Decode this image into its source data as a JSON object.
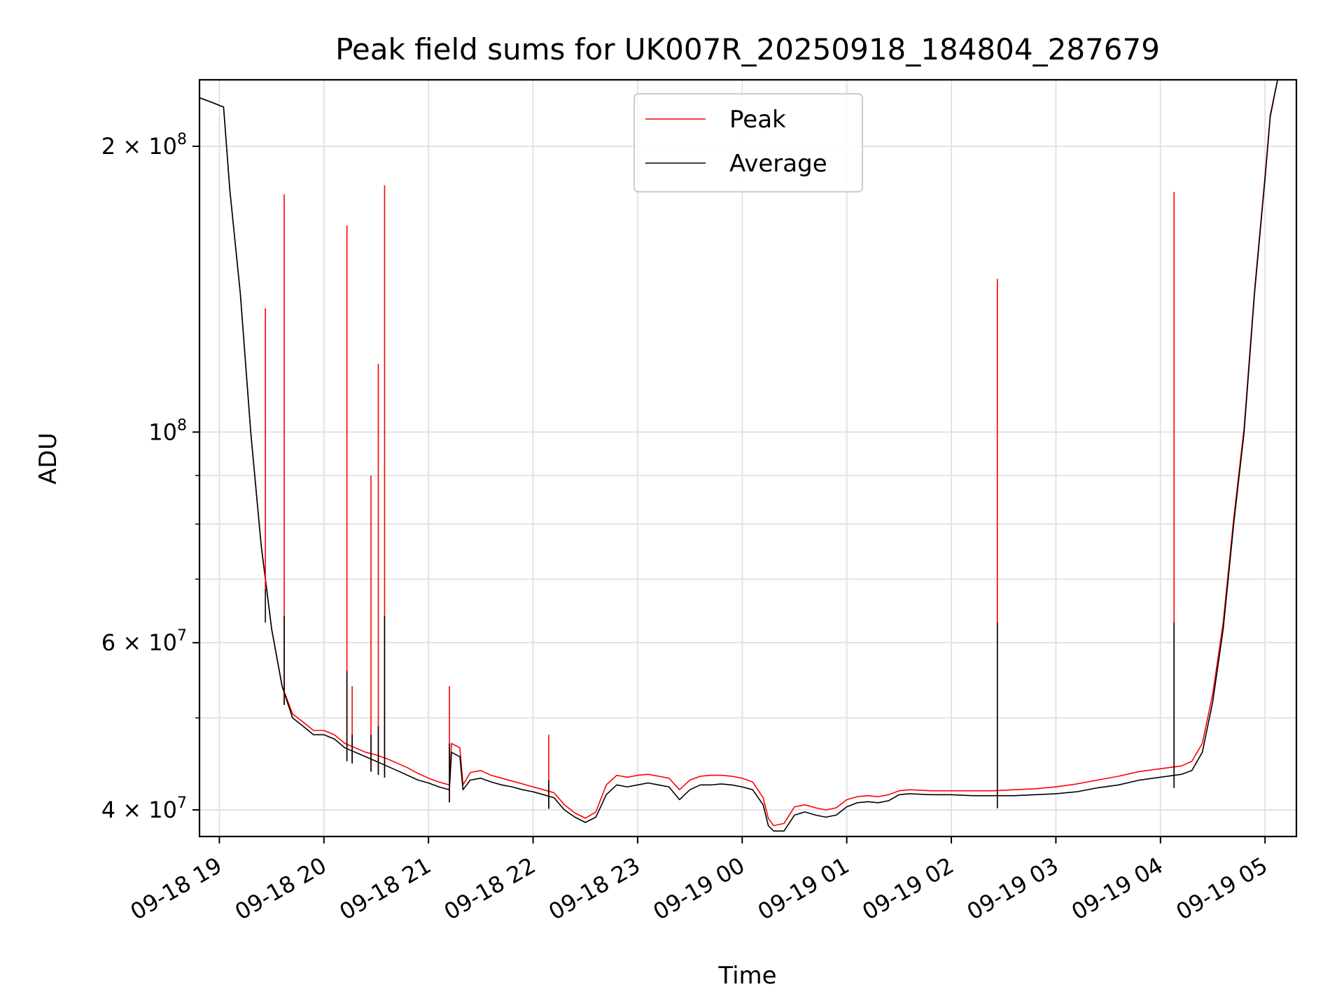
{
  "chart_data": {
    "type": "line",
    "title": "Peak field sums for UK007R_20250918_184804_287679",
    "xlabel": "Time",
    "ylabel": "ADU",
    "yscale": "log",
    "ylim": [
      37500000,
      235000000
    ],
    "xlim_hours": [
      -0.19,
      10.3
    ],
    "x_origin": "09-18 19:00",
    "grid": true,
    "legend_position": "upper center",
    "x_ticks": [
      {
        "h": 0,
        "label": "09-18 19"
      },
      {
        "h": 1,
        "label": "09-18 20"
      },
      {
        "h": 2,
        "label": "09-18 21"
      },
      {
        "h": 3,
        "label": "09-18 22"
      },
      {
        "h": 4,
        "label": "09-18 23"
      },
      {
        "h": 5,
        "label": "09-19 00"
      },
      {
        "h": 6,
        "label": "09-19 01"
      },
      {
        "h": 7,
        "label": "09-19 02"
      },
      {
        "h": 8,
        "label": "09-19 03"
      },
      {
        "h": 9,
        "label": "09-19 04"
      },
      {
        "h": 10,
        "label": "09-19 05"
      }
    ],
    "y_ticks": [
      {
        "value": 40000000,
        "base": "4 × 10",
        "exp": "7"
      },
      {
        "value": 60000000,
        "base": "6 × 10",
        "exp": "7"
      },
      {
        "value": 100000000,
        "base": "10",
        "exp": "8"
      },
      {
        "value": 200000000,
        "base": "2 × 10",
        "exp": "8"
      }
    ],
    "y_minor_ticks": [
      50000000,
      70000000,
      80000000,
      90000000
    ],
    "series": [
      {
        "name": "Average",
        "color": "#000000",
        "points": [
          [
            -0.19,
            225000000
          ],
          [
            -0.05,
            222000000
          ],
          [
            0.04,
            220000000
          ],
          [
            0.1,
            180000000
          ],
          [
            0.2,
            140000000
          ],
          [
            0.3,
            100000000
          ],
          [
            0.4,
            76000000
          ],
          [
            0.5,
            62000000
          ],
          [
            0.6,
            54000000
          ],
          [
            0.7,
            50000000
          ],
          [
            0.8,
            49000000
          ],
          [
            0.9,
            48000000
          ],
          [
            1.0,
            48000000
          ],
          [
            1.1,
            47500000
          ],
          [
            1.2,
            46500000
          ],
          [
            1.3,
            46000000
          ],
          [
            1.4,
            45500000
          ],
          [
            1.5,
            45000000
          ],
          [
            1.6,
            44500000
          ],
          [
            1.7,
            44000000
          ],
          [
            1.8,
            43500000
          ],
          [
            1.9,
            43000000
          ],
          [
            2.0,
            42700000
          ],
          [
            2.1,
            42300000
          ],
          [
            2.2,
            42000000
          ],
          [
            2.22,
            46000000
          ],
          [
            2.3,
            45500000
          ],
          [
            2.33,
            42000000
          ],
          [
            2.4,
            43000000
          ],
          [
            2.5,
            43200000
          ],
          [
            2.6,
            42800000
          ],
          [
            2.7,
            42500000
          ],
          [
            2.8,
            42300000
          ],
          [
            2.9,
            42000000
          ],
          [
            3.0,
            41800000
          ],
          [
            3.1,
            41500000
          ],
          [
            3.2,
            41200000
          ],
          [
            3.3,
            40000000
          ],
          [
            3.4,
            39300000
          ],
          [
            3.5,
            38800000
          ],
          [
            3.6,
            39300000
          ],
          [
            3.7,
            41500000
          ],
          [
            3.8,
            42500000
          ],
          [
            3.9,
            42300000
          ],
          [
            4.0,
            42500000
          ],
          [
            4.1,
            42700000
          ],
          [
            4.2,
            42500000
          ],
          [
            4.3,
            42300000
          ],
          [
            4.4,
            41000000
          ],
          [
            4.5,
            42000000
          ],
          [
            4.6,
            42500000
          ],
          [
            4.7,
            42500000
          ],
          [
            4.8,
            42600000
          ],
          [
            4.9,
            42500000
          ],
          [
            5.0,
            42300000
          ],
          [
            5.1,
            42000000
          ],
          [
            5.2,
            40500000
          ],
          [
            5.25,
            38500000
          ],
          [
            5.3,
            38000000
          ],
          [
            5.4,
            38000000
          ],
          [
            5.5,
            39500000
          ],
          [
            5.6,
            39800000
          ],
          [
            5.7,
            39500000
          ],
          [
            5.8,
            39300000
          ],
          [
            5.9,
            39500000
          ],
          [
            6.0,
            40300000
          ],
          [
            6.1,
            40700000
          ],
          [
            6.2,
            40800000
          ],
          [
            6.3,
            40700000
          ],
          [
            6.4,
            40900000
          ],
          [
            6.5,
            41500000
          ],
          [
            6.6,
            41600000
          ],
          [
            6.8,
            41500000
          ],
          [
            7.0,
            41500000
          ],
          [
            7.2,
            41400000
          ],
          [
            7.4,
            41400000
          ],
          [
            7.6,
            41400000
          ],
          [
            7.8,
            41500000
          ],
          [
            8.0,
            41600000
          ],
          [
            8.2,
            41800000
          ],
          [
            8.4,
            42200000
          ],
          [
            8.6,
            42500000
          ],
          [
            8.8,
            43000000
          ],
          [
            9.0,
            43300000
          ],
          [
            9.2,
            43600000
          ],
          [
            9.3,
            44000000
          ],
          [
            9.4,
            46000000
          ],
          [
            9.5,
            52000000
          ],
          [
            9.6,
            62000000
          ],
          [
            9.7,
            80000000
          ],
          [
            9.8,
            100000000
          ],
          [
            9.9,
            140000000
          ],
          [
            10.0,
            185000000
          ],
          [
            10.05,
            215000000
          ],
          [
            10.12,
            235000000
          ],
          [
            10.3,
            235000000
          ]
        ]
      },
      {
        "name": "Peak",
        "color": "#ff0000",
        "points": [
          [
            -0.19,
            225000000
          ],
          [
            -0.05,
            222000000
          ],
          [
            0.04,
            220000000
          ],
          [
            0.1,
            180000000
          ],
          [
            0.2,
            140000000
          ],
          [
            0.3,
            100000000
          ],
          [
            0.4,
            76000000
          ],
          [
            0.5,
            62000000
          ],
          [
            0.6,
            54000000
          ],
          [
            0.7,
            50500000
          ],
          [
            0.8,
            49500000
          ],
          [
            0.9,
            48500000
          ],
          [
            1.0,
            48500000
          ],
          [
            1.1,
            48000000
          ],
          [
            1.2,
            47000000
          ],
          [
            1.3,
            46500000
          ],
          [
            1.4,
            46000000
          ],
          [
            1.5,
            45700000
          ],
          [
            1.6,
            45300000
          ],
          [
            1.7,
            44800000
          ],
          [
            1.8,
            44300000
          ],
          [
            1.9,
            43700000
          ],
          [
            2.0,
            43200000
          ],
          [
            2.1,
            42800000
          ],
          [
            2.2,
            42500000
          ],
          [
            2.22,
            47000000
          ],
          [
            2.3,
            46500000
          ],
          [
            2.33,
            42500000
          ],
          [
            2.4,
            43800000
          ],
          [
            2.5,
            44000000
          ],
          [
            2.6,
            43500000
          ],
          [
            2.7,
            43200000
          ],
          [
            2.8,
            42900000
          ],
          [
            2.9,
            42600000
          ],
          [
            3.0,
            42300000
          ],
          [
            3.1,
            42000000
          ],
          [
            3.2,
            41700000
          ],
          [
            3.3,
            40500000
          ],
          [
            3.4,
            39700000
          ],
          [
            3.5,
            39200000
          ],
          [
            3.6,
            39800000
          ],
          [
            3.7,
            42500000
          ],
          [
            3.8,
            43500000
          ],
          [
            3.9,
            43300000
          ],
          [
            4.0,
            43500000
          ],
          [
            4.1,
            43600000
          ],
          [
            4.2,
            43400000
          ],
          [
            4.3,
            43200000
          ],
          [
            4.4,
            42000000
          ],
          [
            4.5,
            43000000
          ],
          [
            4.6,
            43400000
          ],
          [
            4.7,
            43500000
          ],
          [
            4.8,
            43500000
          ],
          [
            4.9,
            43400000
          ],
          [
            5.0,
            43200000
          ],
          [
            5.1,
            42800000
          ],
          [
            5.2,
            41200000
          ],
          [
            5.25,
            39200000
          ],
          [
            5.3,
            38500000
          ],
          [
            5.4,
            38700000
          ],
          [
            5.5,
            40300000
          ],
          [
            5.6,
            40500000
          ],
          [
            5.7,
            40200000
          ],
          [
            5.8,
            40000000
          ],
          [
            5.9,
            40200000
          ],
          [
            6.0,
            41000000
          ],
          [
            6.1,
            41300000
          ],
          [
            6.2,
            41400000
          ],
          [
            6.3,
            41300000
          ],
          [
            6.4,
            41500000
          ],
          [
            6.5,
            41900000
          ],
          [
            6.6,
            42000000
          ],
          [
            6.8,
            41900000
          ],
          [
            7.0,
            41900000
          ],
          [
            7.2,
            41900000
          ],
          [
            7.4,
            41900000
          ],
          [
            7.6,
            42000000
          ],
          [
            7.8,
            42100000
          ],
          [
            8.0,
            42300000
          ],
          [
            8.2,
            42600000
          ],
          [
            8.4,
            43000000
          ],
          [
            8.6,
            43400000
          ],
          [
            8.8,
            43900000
          ],
          [
            9.0,
            44200000
          ],
          [
            9.2,
            44500000
          ],
          [
            9.3,
            45000000
          ],
          [
            9.4,
            47000000
          ],
          [
            9.5,
            53000000
          ],
          [
            9.6,
            63000000
          ],
          [
            9.7,
            81000000
          ],
          [
            9.8,
            101000000
          ],
          [
            9.9,
            141000000
          ],
          [
            10.0,
            186000000
          ],
          [
            10.05,
            216000000
          ],
          [
            10.12,
            235000000
          ],
          [
            10.3,
            235000000
          ]
        ]
      }
    ],
    "spikes": [
      {
        "h": 0.44,
        "peak": 135000000,
        "avg": 63000000
      },
      {
        "h": 0.62,
        "peak": 178000000,
        "avg": 64000000
      },
      {
        "h": 1.22,
        "peak": 165000000,
        "avg": 56000000
      },
      {
        "h": 1.27,
        "peak": 54000000,
        "avg": 48000000
      },
      {
        "h": 1.45,
        "peak": 90000000,
        "avg": 48000000
      },
      {
        "h": 1.52,
        "peak": 118000000,
        "avg": 49000000
      },
      {
        "h": 1.58,
        "peak": 182000000,
        "avg": 64000000
      },
      {
        "h": 2.2,
        "peak": 54000000,
        "avg": 47000000
      },
      {
        "h": 3.15,
        "peak": 48000000,
        "avg": 43000000
      },
      {
        "h": 7.44,
        "peak": 145000000,
        "avg": 63000000
      },
      {
        "h": 9.13,
        "peak": 179000000,
        "avg": 63000000
      }
    ]
  },
  "legend": {
    "items": [
      {
        "label": "Peak",
        "color": "#ff0000"
      },
      {
        "label": "Average",
        "color": "#000000"
      }
    ]
  }
}
